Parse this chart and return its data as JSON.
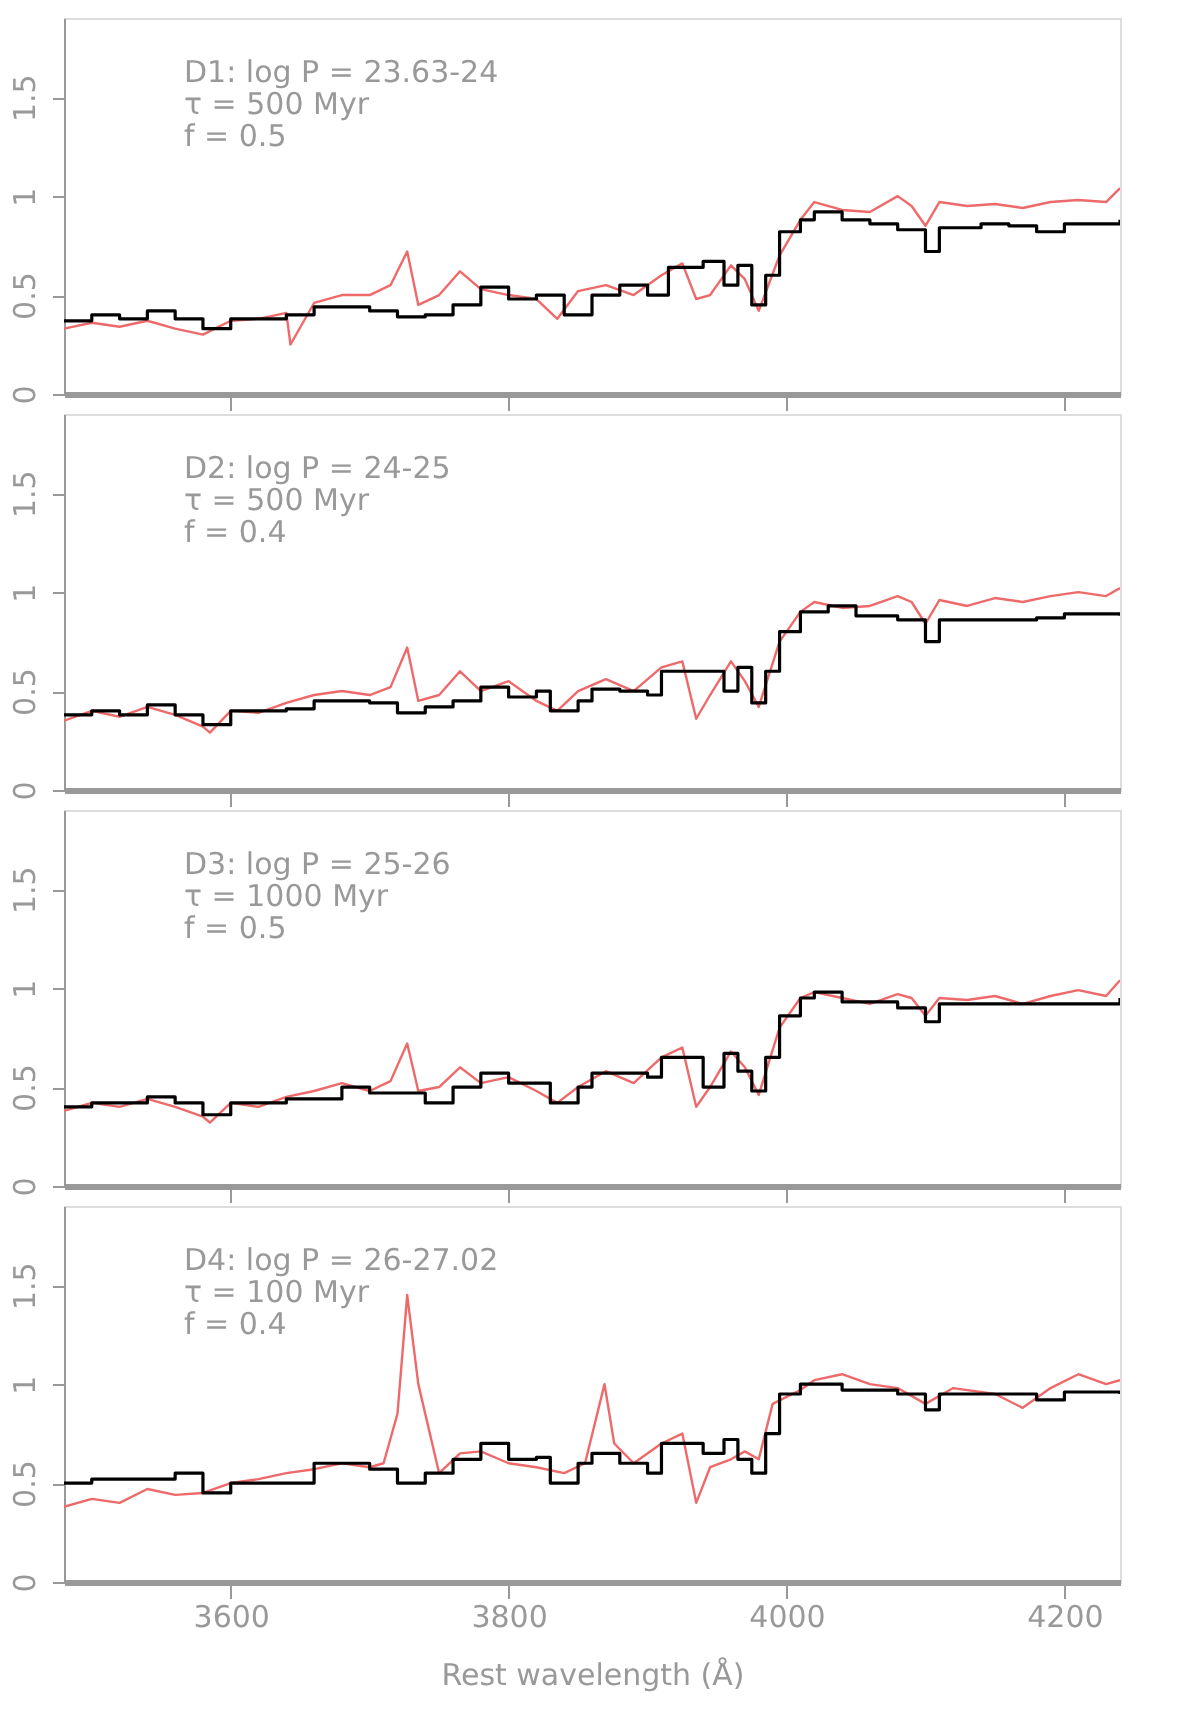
{
  "chart_data": [
    {
      "type": "line",
      "annotations": [
        "D1: log P = 23.63-24",
        "τ = 500 Myr",
        "f = 0.5"
      ],
      "xlim": [
        3480,
        4240
      ],
      "ylim": [
        0,
        1.9
      ],
      "yticks": [
        0,
        0.5,
        1,
        1.5
      ],
      "xticks": [
        3600,
        3800,
        4000,
        4200
      ],
      "tick_labels": "y",
      "grid": false,
      "legend": false,
      "series": [
        {
          "color": "#ee6a6a",
          "x": [
            3480,
            3500,
            3520,
            3540,
            3560,
            3580,
            3600,
            3620,
            3640,
            3643,
            3660,
            3680,
            3700,
            3715,
            3727,
            3735,
            3750,
            3765,
            3780,
            3800,
            3820,
            3835,
            3850,
            3870,
            3890,
            3910,
            3925,
            3935,
            3945,
            3960,
            3970,
            3980,
            3995,
            4010,
            4020,
            4040,
            4060,
            4080,
            4090,
            4100,
            4110,
            4130,
            4150,
            4170,
            4190,
            4210,
            4230,
            4240
          ],
          "values": [
            0.33,
            0.36,
            0.34,
            0.37,
            0.33,
            0.3,
            0.37,
            0.38,
            0.41,
            0.25,
            0.46,
            0.5,
            0.5,
            0.55,
            0.72,
            0.45,
            0.5,
            0.62,
            0.53,
            0.5,
            0.48,
            0.38,
            0.52,
            0.55,
            0.5,
            0.6,
            0.66,
            0.48,
            0.5,
            0.65,
            0.58,
            0.42,
            0.7,
            0.88,
            0.97,
            0.93,
            0.92,
            1.0,
            0.95,
            0.85,
            0.97,
            0.95,
            0.96,
            0.94,
            0.97,
            0.98,
            0.97,
            1.04
          ]
        },
        {
          "type": "step",
          "color": "#000000",
          "x": [
            3480,
            3500,
            3520,
            3540,
            3560,
            3580,
            3600,
            3640,
            3660,
            3700,
            3720,
            3740,
            3760,
            3780,
            3800,
            3820,
            3840,
            3860,
            3880,
            3900,
            3915,
            3940,
            3955,
            3965,
            3975,
            3985,
            3995,
            4010,
            4020,
            4040,
            4060,
            4080,
            4100,
            4110,
            4140,
            4160,
            4180,
            4200,
            4240
          ],
          "values": [
            0.37,
            0.4,
            0.38,
            0.42,
            0.38,
            0.33,
            0.38,
            0.4,
            0.44,
            0.42,
            0.39,
            0.4,
            0.45,
            0.54,
            0.48,
            0.5,
            0.4,
            0.5,
            0.55,
            0.5,
            0.64,
            0.67,
            0.55,
            0.65,
            0.45,
            0.6,
            0.82,
            0.88,
            0.92,
            0.88,
            0.86,
            0.83,
            0.72,
            0.84,
            0.86,
            0.85,
            0.82,
            0.86,
            0.88
          ]
        }
      ]
    },
    {
      "type": "line",
      "annotations": [
        "D2: log P = 24-25",
        "τ = 500 Myr",
        "f = 0.4"
      ],
      "xlim": [
        3480,
        4240
      ],
      "ylim": [
        0,
        1.9
      ],
      "yticks": [
        0,
        0.5,
        1,
        1.5
      ],
      "xticks": [
        3600,
        3800,
        4000,
        4200
      ],
      "tick_labels": "y",
      "grid": false,
      "legend": false,
      "series": [
        {
          "color": "#ee6a6a",
          "x": [
            3480,
            3500,
            3520,
            3540,
            3560,
            3580,
            3585,
            3600,
            3620,
            3640,
            3660,
            3680,
            3700,
            3715,
            3727,
            3735,
            3750,
            3765,
            3780,
            3800,
            3820,
            3835,
            3850,
            3870,
            3890,
            3910,
            3925,
            3935,
            3945,
            3960,
            3970,
            3980,
            3995,
            4010,
            4020,
            4040,
            4060,
            4080,
            4090,
            4100,
            4110,
            4130,
            4150,
            4170,
            4190,
            4210,
            4230,
            4240
          ],
          "values": [
            0.35,
            0.4,
            0.37,
            0.42,
            0.38,
            0.32,
            0.29,
            0.4,
            0.39,
            0.44,
            0.48,
            0.5,
            0.48,
            0.52,
            0.72,
            0.45,
            0.48,
            0.6,
            0.5,
            0.55,
            0.45,
            0.4,
            0.5,
            0.56,
            0.5,
            0.62,
            0.65,
            0.36,
            0.48,
            0.65,
            0.55,
            0.42,
            0.75,
            0.9,
            0.95,
            0.92,
            0.93,
            0.98,
            0.95,
            0.84,
            0.96,
            0.93,
            0.97,
            0.95,
            0.98,
            1.0,
            0.98,
            1.02
          ]
        },
        {
          "type": "step",
          "color": "#000000",
          "x": [
            3480,
            3500,
            3520,
            3540,
            3560,
            3580,
            3600,
            3640,
            3660,
            3700,
            3720,
            3740,
            3760,
            3780,
            3800,
            3820,
            3830,
            3850,
            3860,
            3880,
            3900,
            3910,
            3940,
            3955,
            3965,
            3975,
            3985,
            3995,
            4010,
            4030,
            4050,
            4080,
            4100,
            4110,
            4140,
            4180,
            4200,
            4240
          ],
          "values": [
            0.38,
            0.4,
            0.38,
            0.43,
            0.38,
            0.33,
            0.4,
            0.41,
            0.45,
            0.44,
            0.39,
            0.42,
            0.45,
            0.52,
            0.47,
            0.5,
            0.4,
            0.45,
            0.51,
            0.5,
            0.48,
            0.6,
            0.6,
            0.5,
            0.62,
            0.44,
            0.6,
            0.8,
            0.9,
            0.93,
            0.88,
            0.86,
            0.75,
            0.86,
            0.86,
            0.87,
            0.89,
            0.88
          ]
        }
      ]
    },
    {
      "type": "line",
      "annotations": [
        "D3: log P = 25-26",
        "τ = 1000 Myr",
        "f = 0.5"
      ],
      "xlim": [
        3480,
        4240
      ],
      "ylim": [
        0,
        1.9
      ],
      "yticks": [
        0,
        0.5,
        1,
        1.5
      ],
      "xticks": [
        3600,
        3800,
        4000,
        4200
      ],
      "tick_labels": "y",
      "grid": false,
      "legend": false,
      "series": [
        {
          "color": "#ee6a6a",
          "x": [
            3480,
            3500,
            3520,
            3540,
            3560,
            3580,
            3585,
            3600,
            3620,
            3640,
            3660,
            3680,
            3700,
            3715,
            3727,
            3735,
            3750,
            3765,
            3780,
            3800,
            3820,
            3835,
            3850,
            3870,
            3890,
            3910,
            3925,
            3935,
            3945,
            3960,
            3970,
            3980,
            3995,
            4010,
            4020,
            4040,
            4060,
            4080,
            4090,
            4100,
            4110,
            4130,
            4150,
            4170,
            4190,
            4210,
            4230,
            4240
          ],
          "values": [
            0.38,
            0.42,
            0.4,
            0.44,
            0.4,
            0.35,
            0.32,
            0.42,
            0.4,
            0.45,
            0.48,
            0.52,
            0.48,
            0.53,
            0.72,
            0.48,
            0.5,
            0.6,
            0.52,
            0.55,
            0.48,
            0.42,
            0.5,
            0.58,
            0.52,
            0.65,
            0.7,
            0.4,
            0.5,
            0.68,
            0.6,
            0.46,
            0.8,
            0.95,
            0.98,
            0.95,
            0.92,
            0.97,
            0.95,
            0.86,
            0.95,
            0.94,
            0.96,
            0.92,
            0.96,
            0.99,
            0.96,
            1.04
          ]
        },
        {
          "type": "step",
          "color": "#000000",
          "x": [
            3480,
            3500,
            3540,
            3560,
            3580,
            3600,
            3640,
            3680,
            3700,
            3720,
            3740,
            3760,
            3780,
            3800,
            3820,
            3830,
            3850,
            3860,
            3880,
            3900,
            3910,
            3940,
            3955,
            3965,
            3975,
            3985,
            3995,
            4010,
            4020,
            4040,
            4080,
            4100,
            4110,
            4200,
            4240
          ],
          "values": [
            0.4,
            0.42,
            0.45,
            0.42,
            0.36,
            0.42,
            0.44,
            0.5,
            0.47,
            0.47,
            0.42,
            0.5,
            0.57,
            0.52,
            0.52,
            0.42,
            0.5,
            0.57,
            0.57,
            0.55,
            0.65,
            0.5,
            0.67,
            0.58,
            0.48,
            0.65,
            0.86,
            0.95,
            0.98,
            0.93,
            0.9,
            0.83,
            0.92,
            0.92,
            0.95
          ]
        }
      ]
    },
    {
      "type": "line",
      "annotations": [
        "D4: log P = 26-27.02",
        "τ = 100 Myr",
        "f = 0.4"
      ],
      "xlabel": "Rest wavelength (Å)",
      "xlim": [
        3480,
        4240
      ],
      "ylim": [
        0,
        1.9
      ],
      "yticks": [
        0,
        0.5,
        1,
        1.5
      ],
      "xticks": [
        3600,
        3800,
        4000,
        4200
      ],
      "grid": false,
      "legend": false,
      "series": [
        {
          "color": "#ee6a6a",
          "x": [
            3480,
            3500,
            3520,
            3540,
            3560,
            3580,
            3600,
            3620,
            3640,
            3660,
            3680,
            3700,
            3710,
            3720,
            3727,
            3735,
            3750,
            3765,
            3780,
            3800,
            3820,
            3840,
            3855,
            3862,
            3869,
            3876,
            3890,
            3910,
            3925,
            3935,
            3945,
            3960,
            3970,
            3980,
            3990,
            4010,
            4020,
            4040,
            4060,
            4080,
            4100,
            4120,
            4150,
            4170,
            4190,
            4210,
            4230,
            4240
          ],
          "values": [
            0.38,
            0.42,
            0.4,
            0.47,
            0.44,
            0.45,
            0.5,
            0.52,
            0.55,
            0.57,
            0.6,
            0.58,
            0.6,
            0.85,
            1.45,
            1.0,
            0.55,
            0.65,
            0.66,
            0.6,
            0.58,
            0.55,
            0.6,
            0.8,
            1.0,
            0.7,
            0.6,
            0.7,
            0.75,
            0.4,
            0.58,
            0.62,
            0.66,
            0.62,
            0.9,
            0.97,
            1.02,
            1.05,
            1.0,
            0.98,
            0.9,
            0.98,
            0.95,
            0.88,
            0.98,
            1.05,
            1.0,
            1.02
          ]
        },
        {
          "type": "step",
          "color": "#000000",
          "x": [
            3480,
            3500,
            3560,
            3580,
            3600,
            3660,
            3700,
            3720,
            3740,
            3760,
            3780,
            3800,
            3820,
            3830,
            3850,
            3860,
            3880,
            3900,
            3910,
            3940,
            3955,
            3965,
            3975,
            3985,
            3995,
            4010,
            4040,
            4080,
            4100,
            4110,
            4180,
            4200,
            4240
          ],
          "values": [
            0.5,
            0.52,
            0.55,
            0.45,
            0.5,
            0.6,
            0.57,
            0.5,
            0.55,
            0.62,
            0.7,
            0.62,
            0.63,
            0.5,
            0.6,
            0.65,
            0.6,
            0.55,
            0.7,
            0.65,
            0.72,
            0.62,
            0.55,
            0.75,
            0.95,
            1.0,
            0.97,
            0.95,
            0.87,
            0.95,
            0.92,
            0.96,
            0.95
          ]
        }
      ]
    }
  ]
}
